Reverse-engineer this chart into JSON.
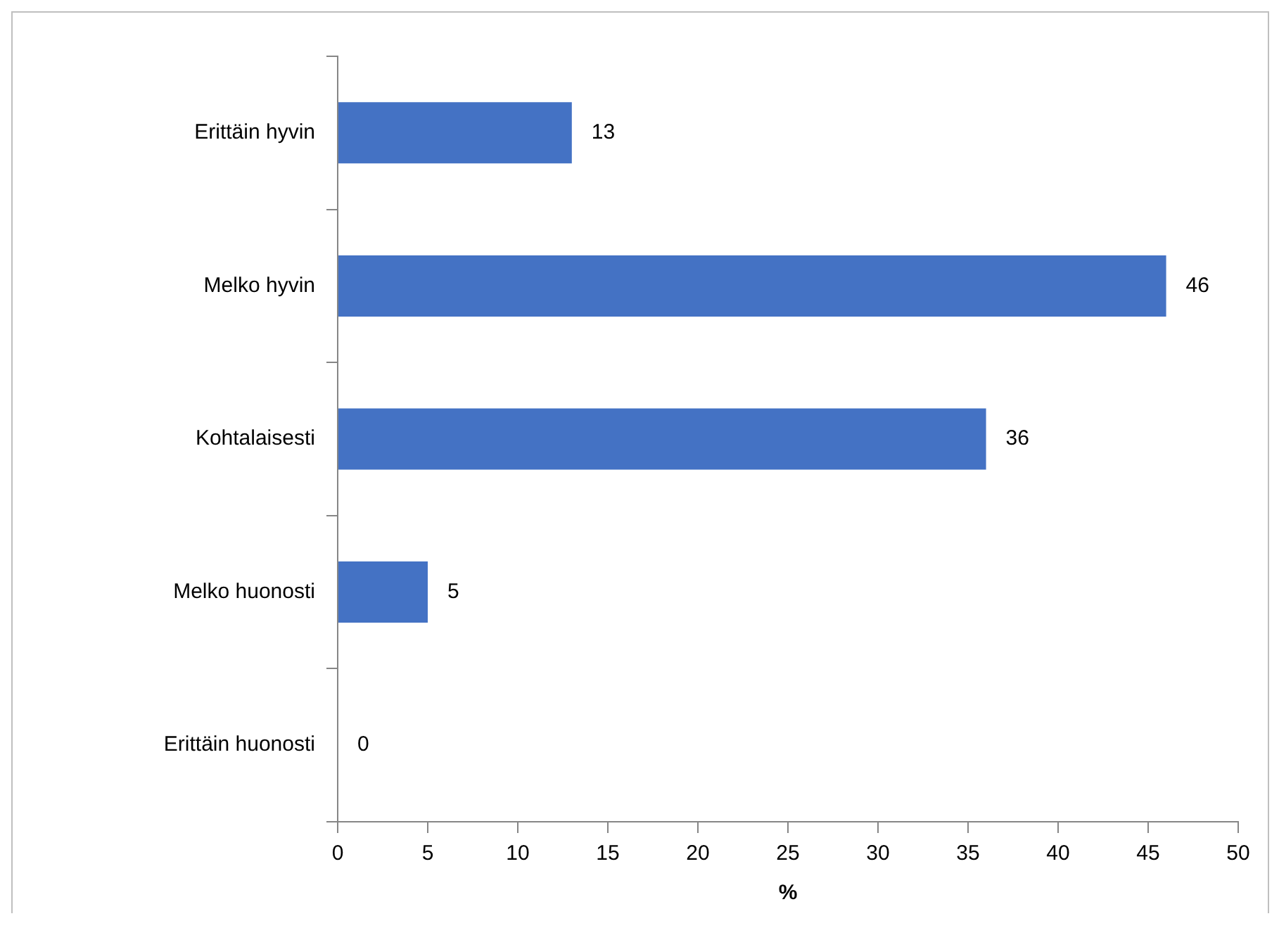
{
  "chart_data": {
    "type": "bar",
    "orientation": "horizontal",
    "xlabel": "%",
    "categories": [
      "Erittäin hyvin",
      "Melko hyvin",
      "Kohtalaisesti",
      "Melko huonosti",
      "Erittäin huonosti"
    ],
    "values": [
      13,
      46,
      36,
      5,
      0
    ],
    "color": "#4472c4",
    "xlim": [
      0,
      50
    ],
    "xticks": [
      0,
      5,
      10,
      15,
      20,
      25,
      30,
      35,
      40,
      45,
      50
    ],
    "grid": false,
    "legend": false,
    "data_labels": true
  }
}
